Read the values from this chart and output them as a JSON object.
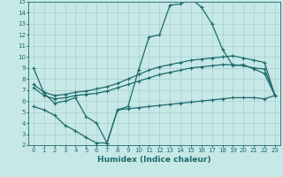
{
  "bg_color": "#c6e8e6",
  "grid_color": "#a8d0ce",
  "line_color": "#1e6b6b",
  "xlabel": "Humidex (Indice chaleur)",
  "xlim": [
    -0.5,
    23.5
  ],
  "ylim": [
    2,
    15
  ],
  "xticks": [
    0,
    1,
    2,
    3,
    4,
    5,
    6,
    7,
    8,
    9,
    10,
    11,
    12,
    13,
    14,
    15,
    16,
    17,
    18,
    19,
    20,
    21,
    22,
    23
  ],
  "yticks": [
    2,
    3,
    4,
    5,
    6,
    7,
    8,
    9,
    10,
    11,
    12,
    13,
    14,
    15
  ],
  "line1_x": [
    0,
    1,
    2,
    3,
    4,
    5,
    6,
    7,
    8,
    9,
    10,
    11,
    12,
    13,
    14,
    15,
    16,
    17,
    18,
    19,
    20,
    21,
    22,
    23
  ],
  "line1_y": [
    9.0,
    6.7,
    5.8,
    6.0,
    6.3,
    4.6,
    4.0,
    2.2,
    5.2,
    5.5,
    8.8,
    11.8,
    12.0,
    14.7,
    14.8,
    15.3,
    14.5,
    13.0,
    10.7,
    9.2,
    9.3,
    8.9,
    8.5,
    6.5
  ],
  "line2_x": [
    0,
    1,
    2,
    3,
    4,
    5,
    6,
    7,
    8,
    9,
    10,
    11,
    12,
    13,
    14,
    15,
    16,
    17,
    18,
    19,
    20,
    21,
    22,
    23
  ],
  "line2_y": [
    7.5,
    6.8,
    6.5,
    6.6,
    6.8,
    6.9,
    7.1,
    7.3,
    7.6,
    8.0,
    8.4,
    8.8,
    9.1,
    9.3,
    9.5,
    9.7,
    9.8,
    9.9,
    10.0,
    10.1,
    9.9,
    9.7,
    9.5,
    6.5
  ],
  "line3_x": [
    0,
    1,
    2,
    3,
    4,
    5,
    6,
    7,
    8,
    9,
    10,
    11,
    12,
    13,
    14,
    15,
    16,
    17,
    18,
    19,
    20,
    21,
    22,
    23
  ],
  "line3_y": [
    7.2,
    6.5,
    6.2,
    6.3,
    6.5,
    6.6,
    6.7,
    6.9,
    7.2,
    7.5,
    7.8,
    8.1,
    8.4,
    8.6,
    8.8,
    9.0,
    9.1,
    9.2,
    9.3,
    9.3,
    9.2,
    9.0,
    8.9,
    6.5
  ],
  "line4_x": [
    0,
    1,
    2,
    3,
    4,
    5,
    6,
    7,
    8,
    9,
    10,
    11,
    12,
    13,
    14,
    15,
    16,
    17,
    18,
    19,
    20,
    21,
    22,
    23
  ],
  "line4_y": [
    5.5,
    5.2,
    4.7,
    3.8,
    3.3,
    2.7,
    2.2,
    2.2,
    5.2,
    5.3,
    5.4,
    5.5,
    5.6,
    5.7,
    5.8,
    5.9,
    6.0,
    6.1,
    6.2,
    6.3,
    6.3,
    6.3,
    6.2,
    6.5
  ],
  "marker": "+",
  "markersize": 3.5,
  "markeredgewidth": 0.8,
  "linewidth": 0.9,
  "tick_fontsize": 5.0,
  "label_fontsize": 6.5,
  "label_fontweight": "bold"
}
